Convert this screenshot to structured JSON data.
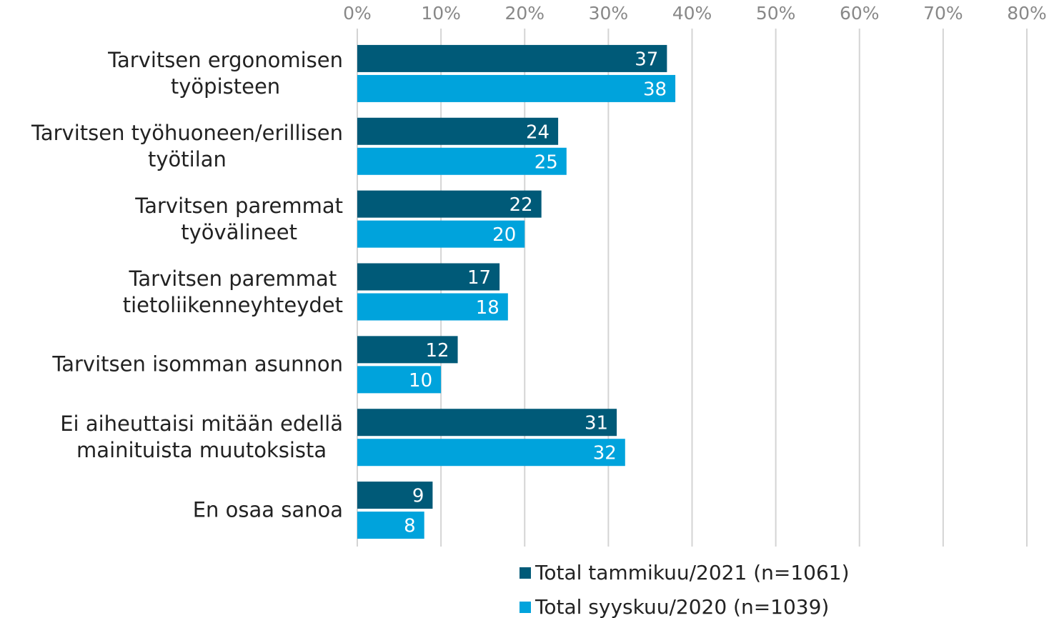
{
  "chart_data": {
    "type": "bar",
    "orientation": "horizontal",
    "categories": [
      "Tarvitsen ergonomisen\ntyöpisteen",
      "Tarvitsen työhuoneen/erillisen\ntyötilan",
      "Tarvitsen paremmat\ntyövälineet",
      "Tarvitsen paremmat\ntietoliikenneyhteydet",
      "Tarvitsen isomman asunnon",
      "Ei aiheuttaisi mitään edellä\nmainituista muutoksista",
      "En osaa sanoa"
    ],
    "series": [
      {
        "name": "Total tammikuu/2021 (n=1061)",
        "color": "#005a78",
        "values": [
          37,
          24,
          22,
          17,
          12,
          31,
          9
        ]
      },
      {
        "name": "Total syyskuu/2020 (n=1039)",
        "color": "#00a3dc",
        "values": [
          38,
          25,
          20,
          18,
          10,
          32,
          8
        ]
      }
    ],
    "xlim": [
      0,
      80
    ],
    "xticks": [
      {
        "value": 0,
        "label": "0%"
      },
      {
        "value": 10,
        "label": "10%"
      },
      {
        "value": 20,
        "label": "20%"
      },
      {
        "value": 30,
        "label": "30%"
      },
      {
        "value": 40,
        "label": "40%"
      },
      {
        "value": 50,
        "label": "50%"
      },
      {
        "value": 60,
        "label": "60%"
      },
      {
        "value": 70,
        "label": "70%"
      },
      {
        "value": 80,
        "label": "80%"
      }
    ],
    "grid": true,
    "legend": "bottom"
  }
}
